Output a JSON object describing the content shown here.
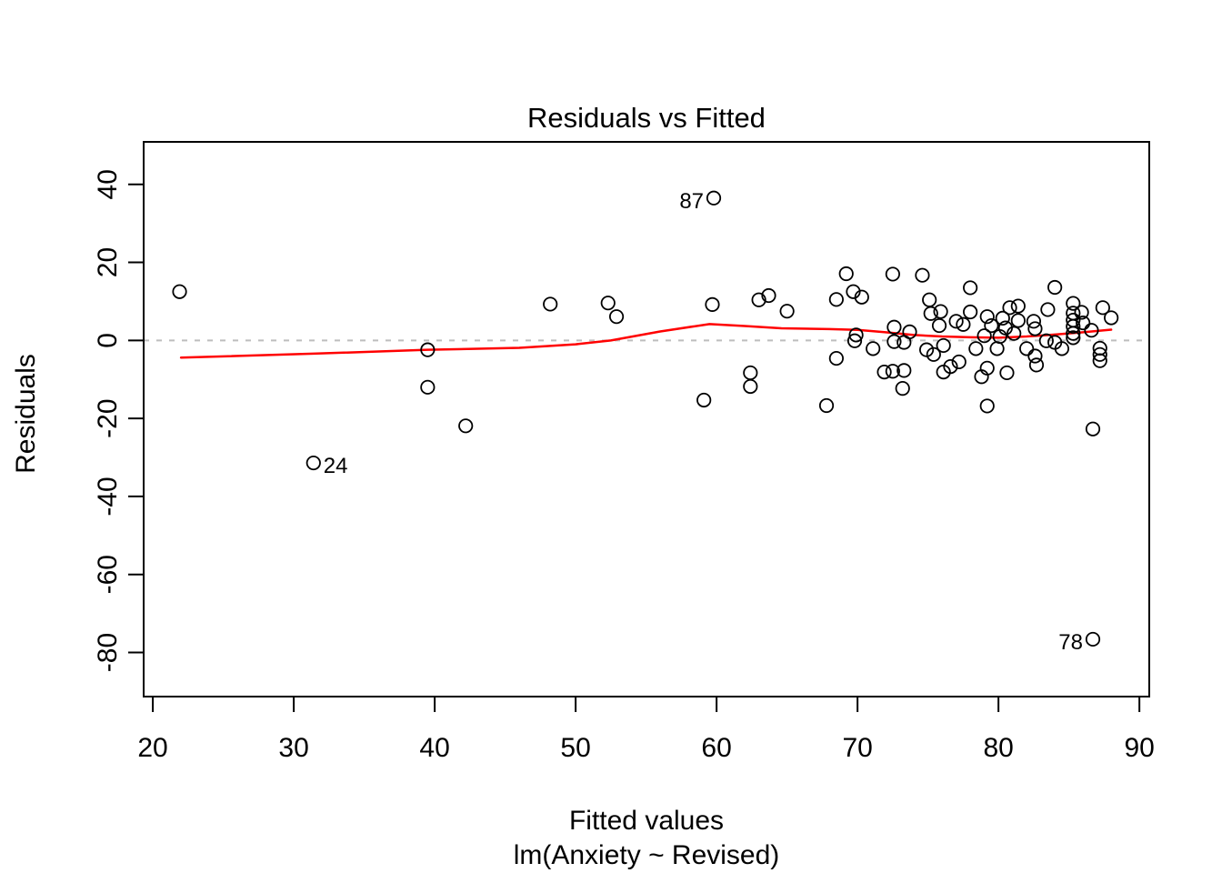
{
  "figure": {
    "background": "#ffffff",
    "text_color": "#000000"
  },
  "chart_data": {
    "type": "scatter",
    "title": "Residuals vs Fitted",
    "xlabel": "Fitted values",
    "xlabel2": "lm(Anxiety ~ Revised)",
    "ylabel": "Residuals",
    "xlim": [
      19.35,
      90.7
    ],
    "ylim": [
      -91.3,
      50.9
    ],
    "x_ticks": [
      20,
      30,
      40,
      50,
      60,
      70,
      80,
      90
    ],
    "y_ticks": [
      -80,
      -60,
      -40,
      -20,
      0,
      20,
      40
    ],
    "grid": false,
    "legend": "none",
    "point_style": "open-circle",
    "colors": {
      "points": "#000000",
      "smoother": "#FF0000",
      "zero_line": "#BEBEBE"
    },
    "zero_line": {
      "y": 0,
      "style": "dashed"
    },
    "points": [
      [
        21.9,
        12.5
      ],
      [
        39.5,
        -2.4
      ],
      [
        39.5,
        -12.0
      ],
      [
        42.2,
        -21.9
      ],
      [
        48.2,
        9.3
      ],
      [
        52.3,
        9.6
      ],
      [
        52.9,
        6.1
      ],
      [
        59.1,
        -15.3
      ],
      [
        59.7,
        9.2
      ],
      [
        62.4,
        -8.3
      ],
      [
        62.4,
        -11.8
      ],
      [
        63.0,
        10.4
      ],
      [
        63.7,
        11.5
      ],
      [
        65.0,
        7.5
      ],
      [
        67.8,
        -16.7
      ],
      [
        68.5,
        10.5
      ],
      [
        68.5,
        -4.6
      ],
      [
        69.2,
        17.1
      ],
      [
        69.7,
        12.5
      ],
      [
        69.8,
        -0.1
      ],
      [
        69.9,
        1.4
      ],
      [
        70.3,
        11.1
      ],
      [
        71.1,
        -2.1
      ],
      [
        71.9,
        -8.1
      ],
      [
        72.5,
        17.0
      ],
      [
        72.5,
        -7.9
      ],
      [
        72.6,
        3.4
      ],
      [
        72.6,
        -0.3
      ],
      [
        73.2,
        -12.3
      ],
      [
        73.3,
        -7.7
      ],
      [
        73.3,
        -0.5
      ],
      [
        73.7,
        2.2
      ],
      [
        74.6,
        16.7
      ],
      [
        74.9,
        -2.4
      ],
      [
        75.1,
        10.4
      ],
      [
        75.2,
        6.9
      ],
      [
        75.4,
        -3.6
      ],
      [
        75.8,
        3.8
      ],
      [
        75.9,
        7.4
      ],
      [
        76.1,
        -1.3
      ],
      [
        76.1,
        -8.1
      ],
      [
        76.6,
        -6.7
      ],
      [
        77.0,
        4.9
      ],
      [
        77.2,
        -5.5
      ],
      [
        77.5,
        4.1
      ],
      [
        78.0,
        13.5
      ],
      [
        78.0,
        7.3
      ],
      [
        78.4,
        -2.1
      ],
      [
        78.8,
        -9.3
      ],
      [
        79.0,
        1.2
      ],
      [
        79.2,
        6.1
      ],
      [
        79.2,
        -7.1
      ],
      [
        79.2,
        -16.8
      ],
      [
        79.5,
        3.8
      ],
      [
        79.9,
        -2.1
      ],
      [
        80.1,
        1.0
      ],
      [
        80.3,
        5.7
      ],
      [
        80.5,
        3.2
      ],
      [
        80.6,
        -8.3
      ],
      [
        80.8,
        8.4
      ],
      [
        81.1,
        1.8
      ],
      [
        81.4,
        8.8
      ],
      [
        81.4,
        5.1
      ],
      [
        82.0,
        -2.1
      ],
      [
        82.5,
        4.9
      ],
      [
        82.6,
        3.0
      ],
      [
        82.6,
        -4.0
      ],
      [
        82.7,
        -6.3
      ],
      [
        83.4,
        -0.1
      ],
      [
        83.5,
        7.9
      ],
      [
        84.0,
        13.6
      ],
      [
        84.0,
        -0.5
      ],
      [
        84.5,
        -2.1
      ],
      [
        85.3,
        9.5
      ],
      [
        85.3,
        7.0
      ],
      [
        85.3,
        5.2
      ],
      [
        85.3,
        3.6
      ],
      [
        85.3,
        1.8
      ],
      [
        85.3,
        0.7
      ],
      [
        85.9,
        7.2
      ],
      [
        86.0,
        4.5
      ],
      [
        86.6,
        2.6
      ],
      [
        86.7,
        -22.7
      ],
      [
        87.2,
        -2.0
      ],
      [
        87.2,
        -3.6
      ],
      [
        87.2,
        -5.2
      ],
      [
        87.4,
        8.4
      ],
      [
        88.0,
        5.8
      ]
    ],
    "labeled_points": [
      {
        "label": "87",
        "x": 59.8,
        "y": 36.5,
        "side": "left"
      },
      {
        "label": "24",
        "x": 31.4,
        "y": -31.4,
        "side": "right"
      },
      {
        "label": "78",
        "x": 86.7,
        "y": -76.6,
        "side": "left"
      }
    ],
    "smoother": [
      [
        22.0,
        -4.4
      ],
      [
        31.4,
        -3.4
      ],
      [
        39.5,
        -2.4
      ],
      [
        46.0,
        -1.9
      ],
      [
        50.0,
        -1.0
      ],
      [
        52.5,
        0.0
      ],
      [
        56.0,
        2.3
      ],
      [
        59.5,
        4.2
      ],
      [
        62.0,
        3.7
      ],
      [
        64.6,
        3.1
      ],
      [
        68.0,
        2.9
      ],
      [
        70.0,
        2.7
      ],
      [
        72.0,
        2.1
      ],
      [
        74.0,
        1.4
      ],
      [
        76.0,
        1.0
      ],
      [
        78.0,
        0.8
      ],
      [
        80.0,
        0.7
      ],
      [
        82.0,
        1.0
      ],
      [
        84.0,
        1.5
      ],
      [
        86.0,
        2.1
      ],
      [
        88.0,
        2.75
      ]
    ]
  }
}
